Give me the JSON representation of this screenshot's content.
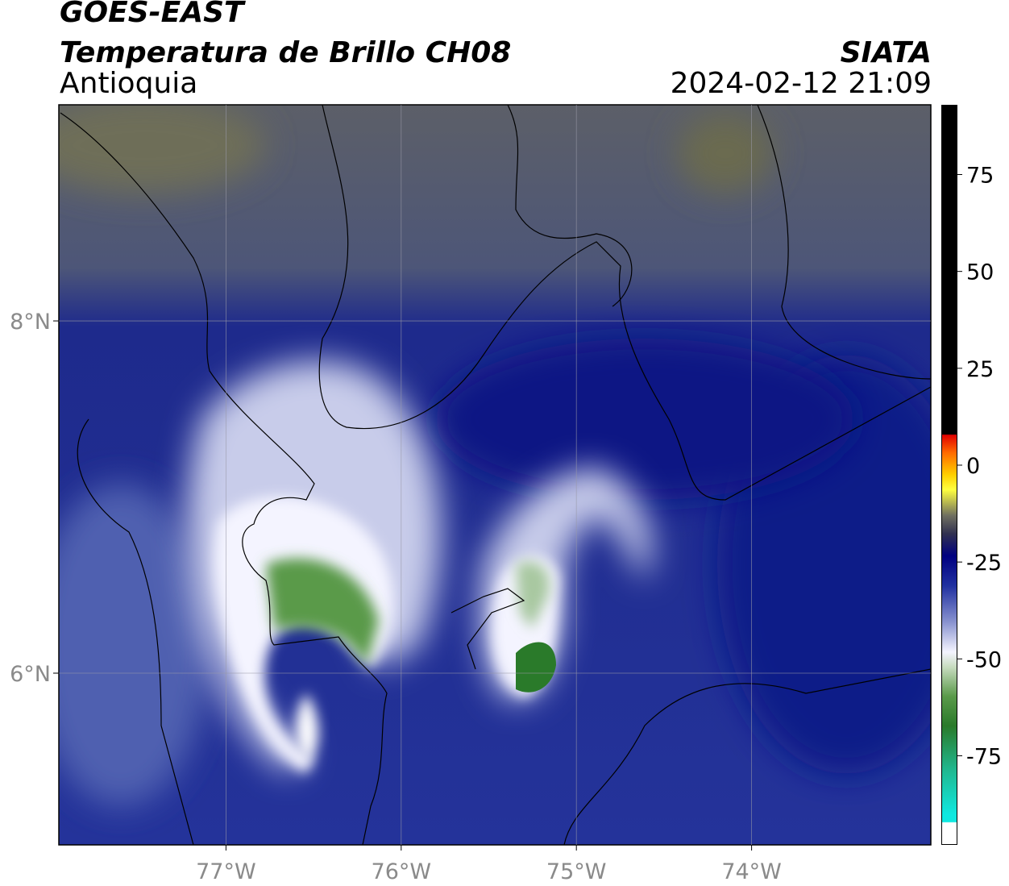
{
  "header": {
    "satellite": "GOES-EAST",
    "product": "Temperatura de Brillo CH08",
    "source": "SIATA",
    "region": "Antioquia",
    "datetime": "2024-02-12 21:09"
  },
  "map": {
    "lonlim": [
      -77.954,
      -72.977
    ],
    "latlim": [
      5.025,
      9.227
    ],
    "lonticks": [
      {
        "value": -77,
        "label": "77°W"
      },
      {
        "value": -76,
        "label": "76°W"
      },
      {
        "value": -75,
        "label": "75°W"
      },
      {
        "value": -74,
        "label": "74°W"
      }
    ],
    "latticks": [
      {
        "value": 8,
        "label": "8°N"
      },
      {
        "value": 6,
        "label": "6°N"
      }
    ]
  },
  "colorbar": {
    "lim": [
      -98,
      93
    ],
    "ticks": [
      75,
      50,
      25,
      0,
      -25,
      -50,
      -75
    ]
  }
}
